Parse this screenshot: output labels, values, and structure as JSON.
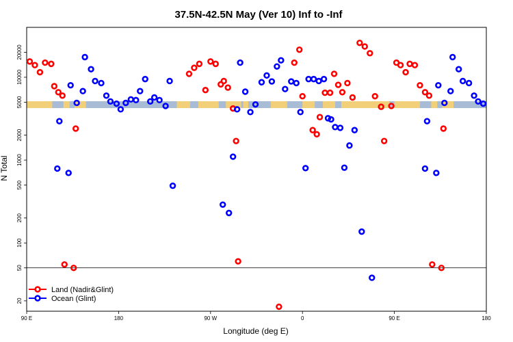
{
  "chart_data": {
    "type": "scatter",
    "title": "37.5N-42.5N May (Ver 10)   Inf to -Inf",
    "xlabel": "Longitude (deg E)",
    "ylabel": "N Total",
    "x_scale": "longitude, 90E -> 180 -> 90W -> 0 -> 90E -> 180",
    "y_scale": "log",
    "xlim_unwrapped_deg": [
      90,
      540
    ],
    "ylim": [
      15,
      40000
    ],
    "x_ticks": [
      {
        "label": "90 E",
        "deg": 90
      },
      {
        "label": "180",
        "deg": 180
      },
      {
        "label": "90 W",
        "deg": 270
      },
      {
        "label": "0",
        "deg": 360
      },
      {
        "label": "90 E",
        "deg": 450
      },
      {
        "label": "180",
        "deg": 540
      }
    ],
    "y_ticks": [
      20,
      50,
      100,
      200,
      500,
      1000,
      2000,
      5000,
      10000,
      20000
    ],
    "reference_line_y": 50,
    "colors": {
      "land": "#ff0000",
      "ocean": "#0000ff",
      "map_land": "#f2d07a",
      "map_ocean": "#a9bcd6"
    },
    "legend": {
      "position": "bottom-left",
      "entries": [
        "Land (Nadir&Glint)",
        "Ocean (Glint)"
      ]
    },
    "series": [
      {
        "name": "Land (Nadir&Glint)",
        "color": "#ff0000",
        "points": [
          [
            93,
            15500
          ],
          [
            98,
            14000
          ],
          [
            103,
            11500
          ],
          [
            108,
            15000
          ],
          [
            114,
            14500
          ],
          [
            117,
            7800
          ],
          [
            121,
            6600
          ],
          [
            125,
            6000
          ],
          [
            127,
            55
          ],
          [
            136,
            50
          ],
          [
            138,
            2400
          ],
          [
            249,
            11000
          ],
          [
            254,
            13000
          ],
          [
            259,
            14500
          ],
          [
            265,
            7000
          ],
          [
            270,
            15500
          ],
          [
            275,
            14500
          ],
          [
            280,
            8200
          ],
          [
            283,
            9000
          ],
          [
            287,
            7500
          ],
          [
            292,
            4200
          ],
          [
            295,
            1700
          ],
          [
            297,
            60
          ],
          [
            337,
            17
          ],
          [
            352,
            15000
          ],
          [
            357,
            21500
          ],
          [
            360,
            5900
          ],
          [
            370,
            2300
          ],
          [
            374,
            2050
          ],
          [
            377,
            3300
          ],
          [
            382,
            6500
          ],
          [
            387,
            6500
          ],
          [
            391,
            11000
          ],
          [
            395,
            8100
          ],
          [
            399,
            6600
          ],
          [
            404,
            8500
          ],
          [
            409,
            5700
          ],
          [
            416,
            26000
          ],
          [
            421,
            23500
          ],
          [
            426,
            19500
          ],
          [
            431,
            5900
          ],
          [
            437,
            4400
          ],
          [
            440,
            1700
          ],
          [
            447,
            4500
          ],
          [
            452,
            15000
          ],
          [
            456,
            14000
          ],
          [
            461,
            11500
          ],
          [
            465,
            14500
          ],
          [
            470,
            14000
          ],
          [
            475,
            8000
          ],
          [
            480,
            6600
          ],
          [
            484,
            6000
          ],
          [
            487,
            55
          ],
          [
            496,
            50
          ],
          [
            498,
            2400
          ]
        ]
      },
      {
        "name": "Ocean (Glint)",
        "color": "#0000ff",
        "points": [
          [
            120,
            790
          ],
          [
            122,
            2950
          ],
          [
            131,
            700
          ],
          [
            133,
            8000
          ],
          [
            139,
            4900
          ],
          [
            145,
            6800
          ],
          [
            147,
            17500
          ],
          [
            153,
            12500
          ],
          [
            157,
            9000
          ],
          [
            163,
            8500
          ],
          [
            168,
            6000
          ],
          [
            172,
            5100
          ],
          [
            178,
            4800
          ],
          [
            182,
            4100
          ],
          [
            187,
            4900
          ],
          [
            192,
            5400
          ],
          [
            197,
            5300
          ],
          [
            201,
            6800
          ],
          [
            206,
            9500
          ],
          [
            211,
            5100
          ],
          [
            215,
            5700
          ],
          [
            220,
            5300
          ],
          [
            226,
            4500
          ],
          [
            230,
            9000
          ],
          [
            233,
            490
          ],
          [
            282,
            290
          ],
          [
            288,
            230
          ],
          [
            292,
            1100
          ],
          [
            296,
            4100
          ],
          [
            299,
            15000
          ],
          [
            304,
            6700
          ],
          [
            309,
            3800
          ],
          [
            314,
            4700
          ],
          [
            320,
            8700
          ],
          [
            325,
            10500
          ],
          [
            330,
            8900
          ],
          [
            335,
            13500
          ],
          [
            339,
            16000
          ],
          [
            343,
            7200
          ],
          [
            349,
            8900
          ],
          [
            354,
            8500
          ],
          [
            358,
            3800
          ],
          [
            363,
            800
          ],
          [
            366,
            9500
          ],
          [
            371,
            9500
          ],
          [
            376,
            9000
          ],
          [
            381,
            9500
          ],
          [
            385,
            3200
          ],
          [
            388,
            3100
          ],
          [
            392,
            2500
          ],
          [
            397,
            2450
          ],
          [
            401,
            810
          ],
          [
            406,
            1500
          ],
          [
            411,
            2300
          ],
          [
            418,
            137
          ],
          [
            428,
            38
          ],
          [
            480,
            790
          ],
          [
            482,
            2950
          ],
          [
            491,
            700
          ],
          [
            493,
            8000
          ],
          [
            499,
            4900
          ],
          [
            505,
            6800
          ],
          [
            507,
            17500
          ],
          [
            513,
            12500
          ],
          [
            517,
            9000
          ],
          [
            523,
            8500
          ],
          [
            528,
            6000
          ],
          [
            532,
            5100
          ],
          [
            537,
            4800
          ]
        ]
      }
    ]
  }
}
